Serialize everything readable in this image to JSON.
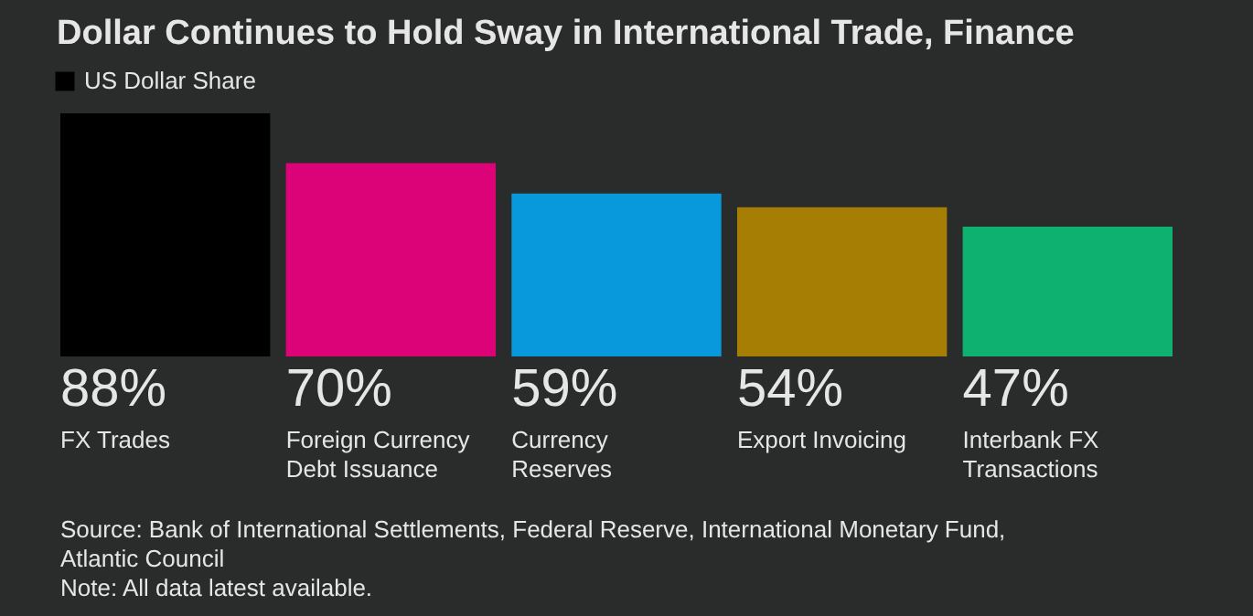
{
  "chart_data": {
    "type": "bar",
    "title": "Dollar Continues to Hold Sway in International Trade, Finance",
    "categories": [
      "FX Trades",
      "Foreign Currency Debt Issuance",
      "Currency Reserves",
      "Export Invoicing",
      "Interbank FX Transactions"
    ],
    "series": [
      {
        "name": "US Dollar Share",
        "color": "#000000",
        "colors": [
          "#000000",
          "#dc0278",
          "#0899dc",
          "#a57e03",
          "#0eb16f"
        ],
        "values": [
          88,
          70,
          59,
          54,
          47
        ],
        "value_labels": [
          "88%",
          "70%",
          "59%",
          "54%",
          "47%"
        ]
      }
    ],
    "legend": "top left",
    "annotations": [
      "Source: Bank of International Settlements, Federal Reserve, International Monetary Fund, Atlantic Council",
      "Note: All data latest available."
    ]
  }
}
